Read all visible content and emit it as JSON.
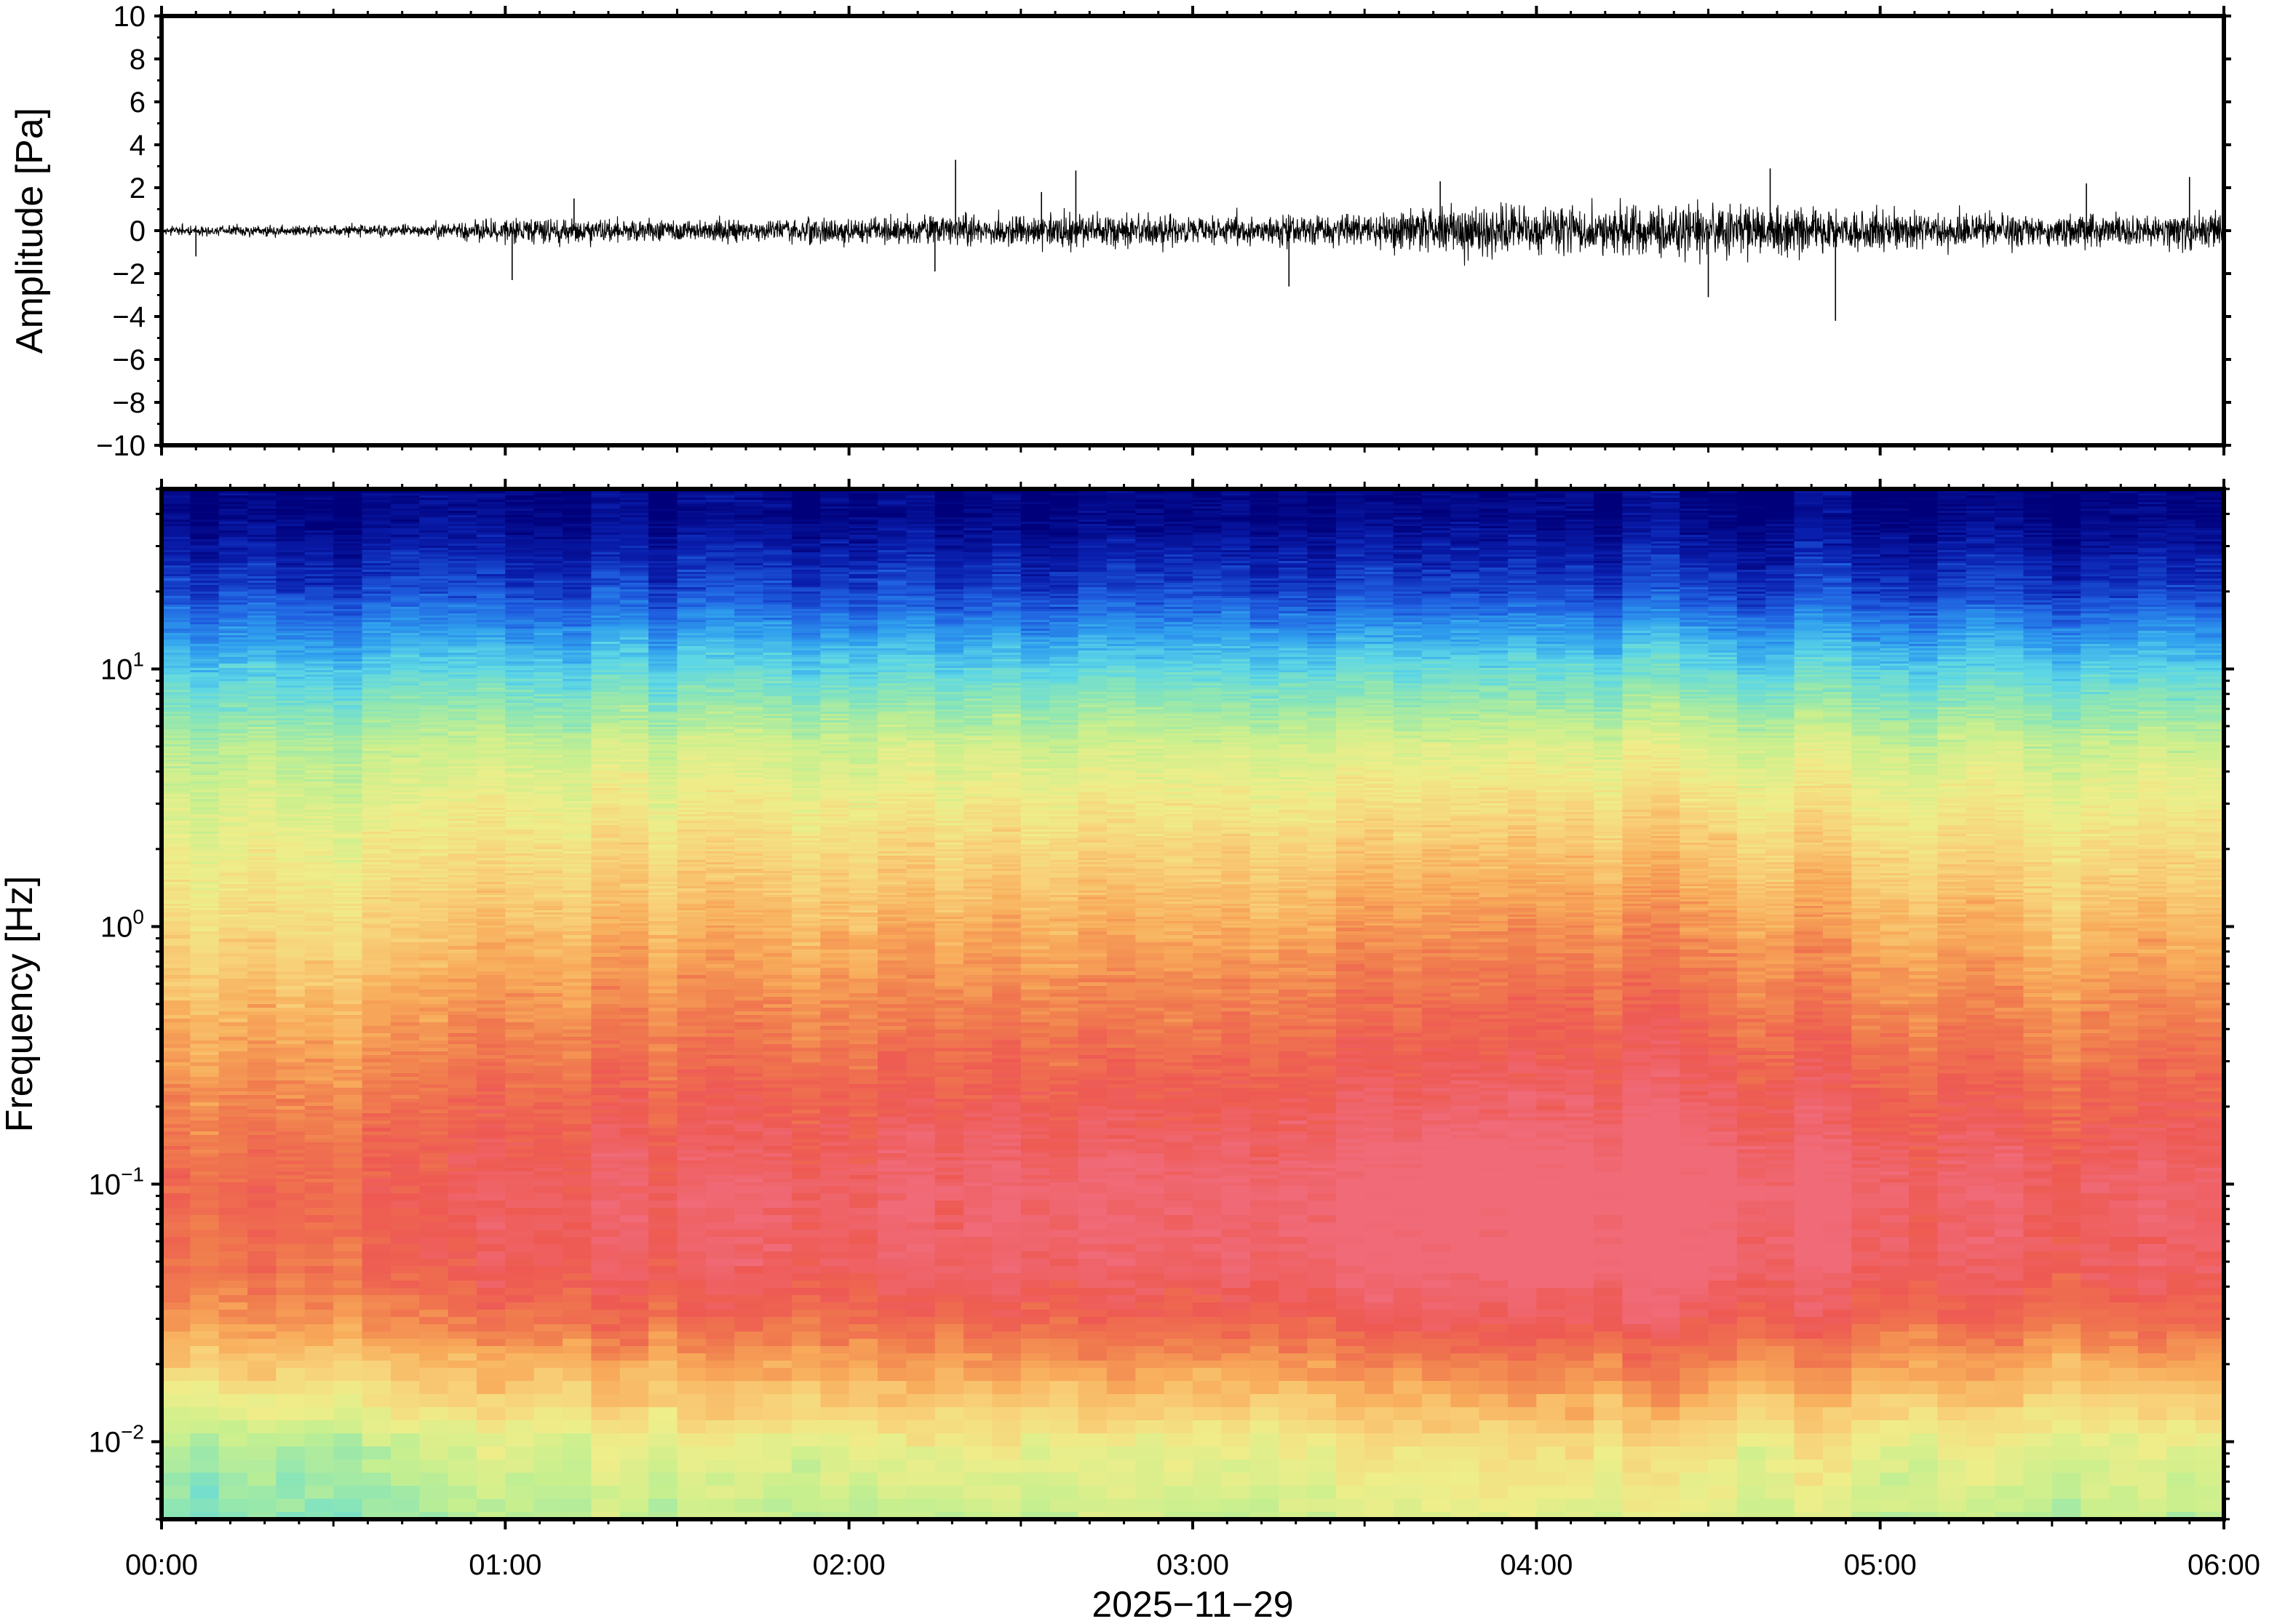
{
  "chart_data": [
    {
      "type": "line",
      "ylabel": "Amplitude [Pa]",
      "ylim": [
        -10,
        10
      ],
      "yticks": [
        10,
        8,
        6,
        4,
        2,
        0,
        -2,
        -4,
        -6,
        -8,
        -10
      ],
      "ytick_labels": [
        "10",
        "8",
        "6",
        "4",
        "2",
        "0",
        "−2",
        "−4",
        "−6",
        "−8",
        "−10"
      ],
      "xlim_hours": [
        0,
        6
      ],
      "series": [
        {
          "color": "#000000",
          "x_hours": [
            0,
            0.25,
            0.5,
            0.75,
            1.0,
            1.25,
            1.5,
            1.75,
            2.0,
            2.25,
            2.5,
            2.75,
            3.0,
            3.25,
            3.5,
            3.75,
            4.0,
            4.25,
            4.5,
            4.75,
            5.0,
            5.25,
            5.5,
            5.75,
            6.0
          ],
          "envelope_pa": [
            0.35,
            0.4,
            0.45,
            0.45,
            1.0,
            0.9,
            0.8,
            0.85,
            0.95,
            1.1,
            1.2,
            1.3,
            1.1,
            1.2,
            1.3,
            1.9,
            1.8,
            1.8,
            1.9,
            1.8,
            1.5,
            1.3,
            1.2,
            1.3,
            1.5
          ],
          "spikes": [
            {
              "x_hours": 0.1,
              "y": -1.2
            },
            {
              "x_hours": 1.02,
              "y": -2.3
            },
            {
              "x_hours": 1.2,
              "y": 1.5
            },
            {
              "x_hours": 2.25,
              "y": -1.9
            },
            {
              "x_hours": 2.31,
              "y": 3.3
            },
            {
              "x_hours": 2.56,
              "y": 1.8
            },
            {
              "x_hours": 2.66,
              "y": 2.8
            },
            {
              "x_hours": 3.28,
              "y": -2.6
            },
            {
              "x_hours": 3.72,
              "y": 2.3
            },
            {
              "x_hours": 4.5,
              "y": -3.1
            },
            {
              "x_hours": 4.68,
              "y": 2.9
            },
            {
              "x_hours": 4.87,
              "y": -4.2
            },
            {
              "x_hours": 5.6,
              "y": 2.2
            },
            {
              "x_hours": 5.9,
              "y": 2.5
            }
          ]
        }
      ]
    },
    {
      "type": "heatmap",
      "ylabel": "Frequency [Hz]",
      "yscale": "log",
      "ylim": [
        0.005,
        50
      ],
      "yticks": [
        0.01,
        0.1,
        1,
        10
      ],
      "ytick_labels": [
        {
          "base": "10",
          "exp": "−2"
        },
        {
          "base": "10",
          "exp": "−1"
        },
        {
          "base": "10",
          "exp": "0"
        },
        {
          "base": "10",
          "exp": "1"
        }
      ],
      "xlabel": "2025−11−29",
      "xticks_hours": [
        0,
        1,
        2,
        3,
        4,
        5,
        6
      ],
      "xtick_labels": [
        "00:00",
        "01:00",
        "02:00",
        "03:00",
        "04:00",
        "05:00",
        "06:00"
      ],
      "colorscale": [
        "#00007a",
        "#0a1fae",
        "#1f5fe0",
        "#2f9fee",
        "#5cd6e6",
        "#8ee6b3",
        "#c8ef8e",
        "#eeee8a",
        "#f8d27a",
        "#f8ab5a",
        "#f07c4e",
        "#ee5a52",
        "#f06a78"
      ],
      "color_profile_by_frequency": [
        {
          "frequency_hz": 40,
          "level": 0.02
        },
        {
          "frequency_hz": 20,
          "level": 0.14
        },
        {
          "frequency_hz": 10,
          "level": 0.32
        },
        {
          "frequency_hz": 5,
          "level": 0.48
        },
        {
          "frequency_hz": 2,
          "level": 0.58
        },
        {
          "frequency_hz": 1,
          "level": 0.64
        },
        {
          "frequency_hz": 0.5,
          "level": 0.72
        },
        {
          "frequency_hz": 0.2,
          "level": 0.82
        },
        {
          "frequency_hz": 0.1,
          "level": 0.88
        },
        {
          "frequency_hz": 0.05,
          "level": 0.86
        },
        {
          "frequency_hz": 0.03,
          "level": 0.78
        },
        {
          "frequency_hz": 0.02,
          "level": 0.66
        },
        {
          "frequency_hz": 0.01,
          "level": 0.47
        },
        {
          "frequency_hz": 0.005,
          "level": 0.4
        }
      ],
      "activity_by_time": [
        {
          "x_hours": 0.0,
          "level": 0.0
        },
        {
          "x_hours": 0.8,
          "level": 0.03
        },
        {
          "x_hours": 1.0,
          "level": 0.08
        },
        {
          "x_hours": 2.0,
          "level": 0.09
        },
        {
          "x_hours": 2.5,
          "level": 0.12
        },
        {
          "x_hours": 3.0,
          "level": 0.1
        },
        {
          "x_hours": 3.7,
          "level": 0.15
        },
        {
          "x_hours": 4.0,
          "level": 0.16
        },
        {
          "x_hours": 4.5,
          "level": 0.15
        },
        {
          "x_hours": 5.0,
          "level": 0.11
        },
        {
          "x_hours": 5.5,
          "level": 0.09
        },
        {
          "x_hours": 6.0,
          "level": 0.1
        }
      ]
    }
  ]
}
